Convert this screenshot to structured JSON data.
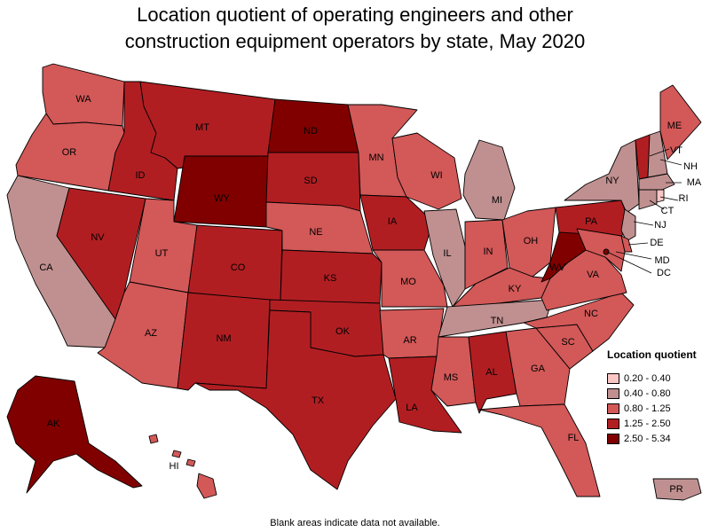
{
  "title_line1": "Location quotient of operating engineers and other",
  "title_line2": "construction equipment operators by state, May 2020",
  "legend": {
    "title": "Location quotient",
    "bins": [
      {
        "label": "0.20 - 0.40",
        "color": "#f9c6c6"
      },
      {
        "label": "0.40 - 0.80",
        "color": "#c09090"
      },
      {
        "label": "0.80 - 1.25",
        "color": "#d35858"
      },
      {
        "label": "1.25 - 2.50",
        "color": "#b11e22"
      },
      {
        "label": "2.50 - 5.34",
        "color": "#800000"
      }
    ]
  },
  "footnote": "Blank areas indicate data not available.",
  "states": [
    {
      "abbr": "WA",
      "bin": 2
    },
    {
      "abbr": "OR",
      "bin": 2
    },
    {
      "abbr": "CA",
      "bin": 1
    },
    {
      "abbr": "ID",
      "bin": 3
    },
    {
      "abbr": "NV",
      "bin": 3
    },
    {
      "abbr": "MT",
      "bin": 3
    },
    {
      "abbr": "WY",
      "bin": 4
    },
    {
      "abbr": "UT",
      "bin": 2
    },
    {
      "abbr": "AZ",
      "bin": 2
    },
    {
      "abbr": "CO",
      "bin": 3
    },
    {
      "abbr": "NM",
      "bin": 3
    },
    {
      "abbr": "ND",
      "bin": 4
    },
    {
      "abbr": "SD",
      "bin": 3
    },
    {
      "abbr": "NE",
      "bin": 2
    },
    {
      "abbr": "KS",
      "bin": 3
    },
    {
      "abbr": "OK",
      "bin": 3
    },
    {
      "abbr": "TX",
      "bin": 3
    },
    {
      "abbr": "MN",
      "bin": 2
    },
    {
      "abbr": "IA",
      "bin": 3
    },
    {
      "abbr": "MO",
      "bin": 2
    },
    {
      "abbr": "AR",
      "bin": 2
    },
    {
      "abbr": "LA",
      "bin": 3
    },
    {
      "abbr": "WI",
      "bin": 2
    },
    {
      "abbr": "IL",
      "bin": 1
    },
    {
      "abbr": "MI",
      "bin": 1
    },
    {
      "abbr": "IN",
      "bin": 2
    },
    {
      "abbr": "OH",
      "bin": 2
    },
    {
      "abbr": "KY",
      "bin": 2
    },
    {
      "abbr": "TN",
      "bin": 1
    },
    {
      "abbr": "MS",
      "bin": 2
    },
    {
      "abbr": "AL",
      "bin": 3
    },
    {
      "abbr": "GA",
      "bin": 2
    },
    {
      "abbr": "FL",
      "bin": 2
    },
    {
      "abbr": "SC",
      "bin": 2
    },
    {
      "abbr": "NC",
      "bin": 2
    },
    {
      "abbr": "VA",
      "bin": 2
    },
    {
      "abbr": "WV",
      "bin": 4
    },
    {
      "abbr": "PA",
      "bin": 3
    },
    {
      "abbr": "NY",
      "bin": 1
    },
    {
      "abbr": "VT",
      "bin": 3
    },
    {
      "abbr": "NH",
      "bin": 1
    },
    {
      "abbr": "ME",
      "bin": 2
    },
    {
      "abbr": "MA",
      "bin": 1
    },
    {
      "abbr": "RI",
      "bin": 0
    },
    {
      "abbr": "CT",
      "bin": 1
    },
    {
      "abbr": "NJ",
      "bin": 1
    },
    {
      "abbr": "DE",
      "bin": 2
    },
    {
      "abbr": "MD",
      "bin": 2
    },
    {
      "abbr": "DC",
      "bin": 4
    },
    {
      "abbr": "AK",
      "bin": 4
    },
    {
      "abbr": "HI",
      "bin": 2
    },
    {
      "abbr": "PR",
      "bin": 1
    }
  ]
}
